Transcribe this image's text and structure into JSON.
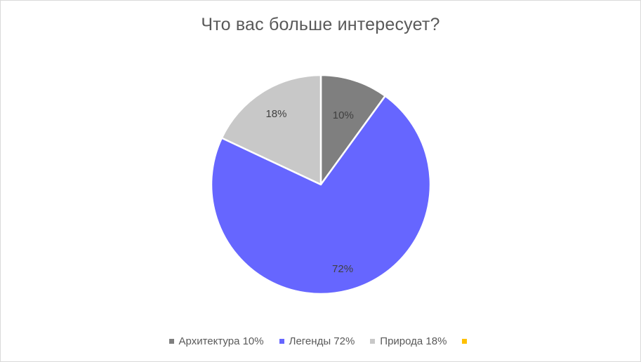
{
  "chart_data": {
    "type": "pie",
    "title": "Что вас больше интересует?",
    "categories": [
      "Архитектура 10%",
      "Легенды 72%",
      "Природа 18%",
      ""
    ],
    "values": [
      10,
      72,
      18,
      0
    ],
    "data_labels": [
      "10%",
      "72%",
      "18%",
      ""
    ],
    "colors": [
      "#7f7f7f",
      "#6666ff",
      "#c8c8c8",
      "#ffc000"
    ],
    "legend_position": "bottom",
    "start_angle_deg": 0,
    "direction": "clockwise"
  }
}
